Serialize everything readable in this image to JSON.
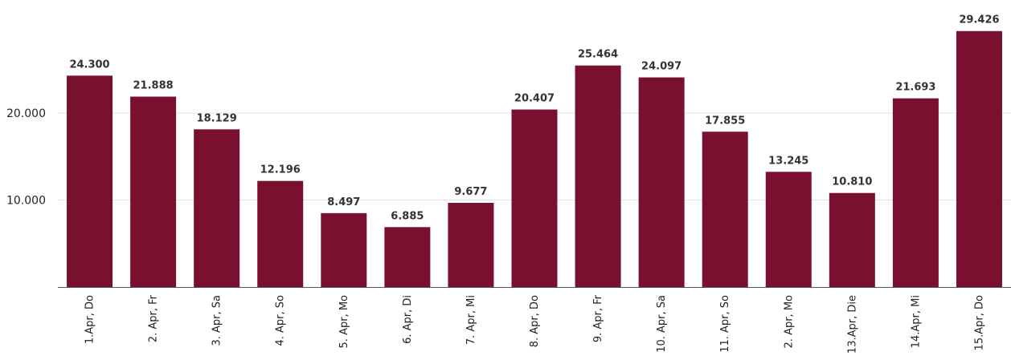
{
  "chart_data": {
    "type": "bar",
    "title": "",
    "xlabel": "",
    "ylabel": "",
    "categories": [
      "1.Apr, Do",
      "2. Apr, Fr",
      "3. Apr, Sa",
      "4. Apr, So",
      "5. Apr, Mo",
      "6. Apr, Di",
      "7. Apr, Mi",
      "8. Apr, Do",
      "9. Apr, Fr",
      "10. Apr, Sa",
      "11. Apr, So",
      "2. Apr, Mo",
      "13.Apr, Die",
      "14.Apr, Mi",
      "15.Apr, Do"
    ],
    "values": [
      24300,
      21888,
      18129,
      12196,
      8497,
      6885,
      9677,
      20407,
      25464,
      24097,
      17855,
      13245,
      10810,
      21693,
      29426
    ],
    "value_labels": [
      "24.300",
      "21.888",
      "18.129",
      "12.196",
      "8.497",
      "6.885",
      "9.677",
      "20.407",
      "25.464",
      "24.097",
      "17.855",
      "13.245",
      "10.810",
      "21.693",
      "29.426"
    ],
    "y_ticks": [
      10000,
      20000
    ],
    "y_tick_labels": [
      "10.000",
      "20.000"
    ],
    "ylim": [
      0,
      30000
    ],
    "grid": true,
    "legend": "none",
    "colors": {
      "bar": "#7a102f",
      "grid": "#e3e3e3",
      "axis": "#555555"
    }
  }
}
